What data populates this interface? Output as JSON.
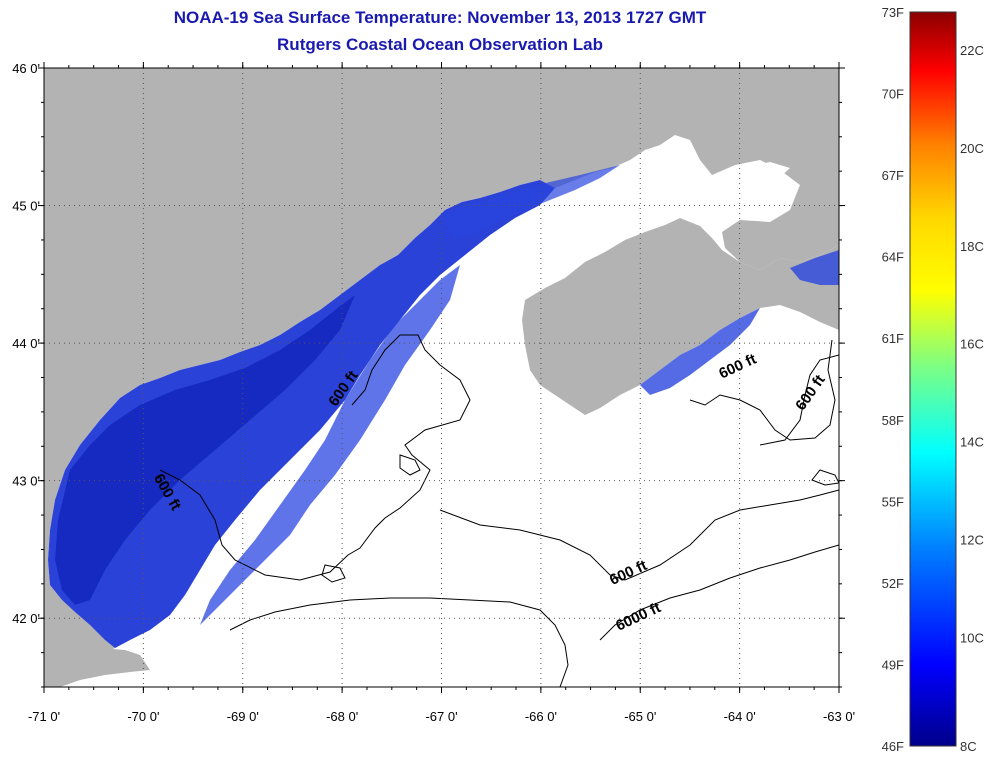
{
  "title": "NOAA-19 Sea Surface Temperature:  November 13, 2013 1727 GMT",
  "subtitle": "Rutgers Coastal Ocean Observation Lab",
  "map": {
    "lat_range": [
      41.5,
      46.0
    ],
    "lon_range": [
      -71.0,
      -63.0
    ],
    "grid": true,
    "colors": {
      "land": "#b3b3b3",
      "no_data": "#ffffff",
      "sst_cold": "#1e3cd8",
      "sst_deep": "#1026b8",
      "contour": "#000000"
    },
    "lat_ticks": [
      {
        "value": 46.0,
        "label": "46 0'"
      },
      {
        "value": 45.0,
        "label": "45 0'"
      },
      {
        "value": 44.0,
        "label": "44 0'"
      },
      {
        "value": 43.0,
        "label": "43 0'"
      },
      {
        "value": 42.0,
        "label": "42 0'"
      }
    ],
    "lon_ticks": [
      {
        "value": -71,
        "label": "-71 0'"
      },
      {
        "value": -70,
        "label": "-70 0'"
      },
      {
        "value": -69,
        "label": "-69 0'"
      },
      {
        "value": -68,
        "label": "-68 0'"
      },
      {
        "value": -67,
        "label": "-67 0'"
      },
      {
        "value": -66,
        "label": "-66 0'"
      },
      {
        "value": -65,
        "label": "-65 0'"
      },
      {
        "value": -64,
        "label": "-64 0'"
      },
      {
        "value": -63,
        "label": "-63 0'"
      }
    ],
    "contour_labels": [
      {
        "text": "600 ft",
        "lon": -67.95,
        "lat": 43.65,
        "rotation": -55
      },
      {
        "text": "600 ft",
        "lon": -69.8,
        "lat": 42.9,
        "rotation": 60
      },
      {
        "text": "600 ft",
        "lon": -64.0,
        "lat": 43.8,
        "rotation": -25
      },
      {
        "text": "600 ft",
        "lon": -63.25,
        "lat": 43.62,
        "rotation": -55
      },
      {
        "text": "600 ft",
        "lon": -65.1,
        "lat": 42.3,
        "rotation": -25
      },
      {
        "text": "6000 ft",
        "lon": -65.0,
        "lat": 41.98,
        "rotation": -25
      }
    ]
  },
  "colorbar": {
    "fahrenheit": [
      "73F",
      "70F",
      "67F",
      "64F",
      "61F",
      "58F",
      "55F",
      "52F",
      "49F",
      "46F"
    ],
    "celsius": [
      "22C",
      "20C",
      "18C",
      "16C",
      "14C",
      "12C",
      "10C",
      "8C"
    ],
    "colors": [
      "#8b0000",
      "#ff0000",
      "#ff8000",
      "#ffd700",
      "#ffff00",
      "#80ff80",
      "#00ffff",
      "#0080ff",
      "#0000ff",
      "#00008b"
    ]
  }
}
